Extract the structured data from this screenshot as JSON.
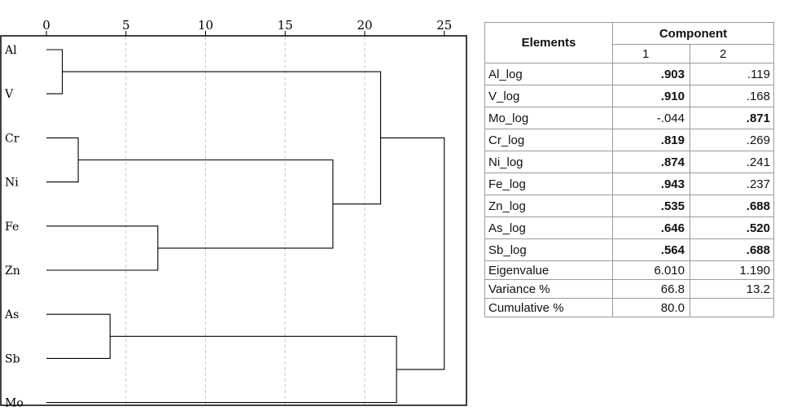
{
  "chart_data": {
    "type": "dendrogram",
    "x_ticks": [
      0,
      5,
      10,
      15,
      20,
      25
    ],
    "xlim": [
      0,
      25
    ],
    "leaves": [
      "Al",
      "V",
      "Cr",
      "Ni",
      "Fe",
      "Zn",
      "As",
      "Sb",
      "Mo"
    ],
    "merges": [
      {
        "left": "Al",
        "right": "V",
        "distance": 1,
        "id": "c1"
      },
      {
        "left": "Cr",
        "right": "Ni",
        "distance": 2,
        "id": "c2"
      },
      {
        "left": "As",
        "right": "Sb",
        "distance": 4,
        "id": "c3"
      },
      {
        "left": "Fe",
        "right": "Zn",
        "distance": 7,
        "id": "c4"
      },
      {
        "left": "c2",
        "right": "c4",
        "distance": 18,
        "id": "c5"
      },
      {
        "left": "c1",
        "right": "c5",
        "distance": 21,
        "id": "c6"
      },
      {
        "left": "c3",
        "right": "Mo",
        "distance": 22,
        "id": "c7"
      },
      {
        "left": "c6",
        "right": "c7",
        "distance": 25,
        "id": "c8"
      }
    ],
    "grid": "vertical-dashed"
  },
  "table": {
    "header_elements": "Elements",
    "header_component": "Component",
    "col1": "1",
    "col2": "2",
    "rows": [
      {
        "label": "Al_log",
        "c1": ".903",
        "c2": ".119",
        "b1": true,
        "b2": false
      },
      {
        "label": "V_log",
        "c1": ".910",
        "c2": ".168",
        "b1": true,
        "b2": false
      },
      {
        "label": "Mo_log",
        "c1": "-.044",
        "c2": ".871",
        "b1": false,
        "b2": true
      },
      {
        "label": "Cr_log",
        "c1": ".819",
        "c2": ".269",
        "b1": true,
        "b2": false
      },
      {
        "label": "Ni_log",
        "c1": ".874",
        "c2": ".241",
        "b1": true,
        "b2": false
      },
      {
        "label": "Fe_log",
        "c1": ".943",
        "c2": ".237",
        "b1": true,
        "b2": false
      },
      {
        "label": "Zn_log",
        "c1": ".535",
        "c2": ".688",
        "b1": true,
        "b2": true
      },
      {
        "label": "As_log",
        "c1": ".646",
        "c2": ".520",
        "b1": true,
        "b2": true
      },
      {
        "label": "Sb_log",
        "c1": ".564",
        "c2": ".688",
        "b1": true,
        "b2": true
      }
    ],
    "footer_rows": [
      {
        "label": "Eigenvalue",
        "c1": "6.010",
        "c2": "1.190"
      },
      {
        "label": "Variance %",
        "c1": "66.8",
        "c2": "13.2"
      },
      {
        "label": "Cumulative %",
        "c1": "80.0",
        "c2": ""
      }
    ]
  }
}
